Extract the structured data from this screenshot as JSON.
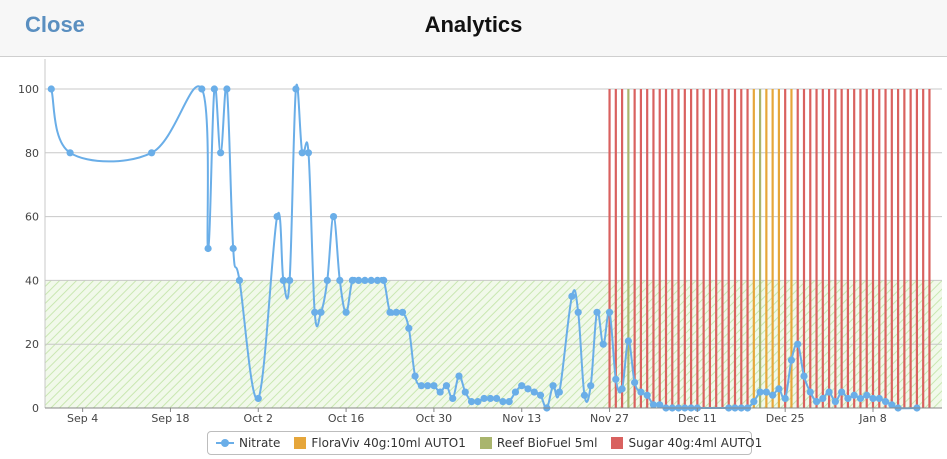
{
  "header": {
    "close_label": "Close",
    "title": "Analytics"
  },
  "colors": {
    "nitrate": "#6aaee8",
    "floraviv": "#e6a63a",
    "biofuel": "#a9b56d",
    "sugar": "#d9615f",
    "target_band": "#bfe3a6"
  },
  "chart_data": {
    "type": "line",
    "ylim": [
      0,
      100
    ],
    "xlim": [
      "2023-08-29",
      "2024-01-19"
    ],
    "yticks": [
      0,
      20,
      40,
      60,
      80,
      100
    ],
    "xticks": [
      {
        "date": "2023-09-04",
        "label": "Sep 4"
      },
      {
        "date": "2023-09-18",
        "label": "Sep 18"
      },
      {
        "date": "2023-10-02",
        "label": "Oct 2"
      },
      {
        "date": "2023-10-16",
        "label": "Oct 16"
      },
      {
        "date": "2023-10-30",
        "label": "Oct 30"
      },
      {
        "date": "2023-11-13",
        "label": "Nov 13"
      },
      {
        "date": "2023-11-27",
        "label": "Nov 27"
      },
      {
        "date": "2023-12-11",
        "label": "Dec 11"
      },
      {
        "date": "2023-12-25",
        "label": "Dec 25"
      },
      {
        "date": "2024-01-08",
        "label": "Jan 8"
      }
    ],
    "target_band": [
      0,
      40
    ],
    "series": [
      {
        "name": "Nitrate",
        "points": [
          [
            "2023-08-30",
            100
          ],
          [
            "2023-09-02",
            80
          ],
          [
            "2023-09-15",
            80
          ],
          [
            "2023-09-23",
            100
          ],
          [
            "2023-09-24",
            50
          ],
          [
            "2023-09-25",
            100
          ],
          [
            "2023-09-26",
            80
          ],
          [
            "2023-09-27",
            100
          ],
          [
            "2023-09-28",
            50
          ],
          [
            "2023-09-29",
            40
          ],
          [
            "2023-10-02",
            3
          ],
          [
            "2023-10-05",
            60
          ],
          [
            "2023-10-06",
            40
          ],
          [
            "2023-10-07",
            40
          ],
          [
            "2023-10-08",
            100
          ],
          [
            "2023-10-09",
            80
          ],
          [
            "2023-10-10",
            80
          ],
          [
            "2023-10-11",
            30
          ],
          [
            "2023-10-12",
            30
          ],
          [
            "2023-10-13",
            40
          ],
          [
            "2023-10-14",
            60
          ],
          [
            "2023-10-15",
            40
          ],
          [
            "2023-10-16",
            30
          ],
          [
            "2023-10-17",
            40
          ],
          [
            "2023-10-18",
            40
          ],
          [
            "2023-10-19",
            40
          ],
          [
            "2023-10-20",
            40
          ],
          [
            "2023-10-21",
            40
          ],
          [
            "2023-10-22",
            40
          ],
          [
            "2023-10-23",
            30
          ],
          [
            "2023-10-24",
            30
          ],
          [
            "2023-10-25",
            30
          ],
          [
            "2023-10-26",
            25
          ],
          [
            "2023-10-27",
            10
          ],
          [
            "2023-10-28",
            7
          ],
          [
            "2023-10-29",
            7
          ],
          [
            "2023-10-30",
            7
          ],
          [
            "2023-10-31",
            5
          ],
          [
            "2023-11-01",
            7
          ],
          [
            "2023-11-02",
            3
          ],
          [
            "2023-11-03",
            10
          ],
          [
            "2023-11-04",
            5
          ],
          [
            "2023-11-05",
            2
          ],
          [
            "2023-11-06",
            2
          ],
          [
            "2023-11-07",
            3
          ],
          [
            "2023-11-08",
            3
          ],
          [
            "2023-11-09",
            3
          ],
          [
            "2023-11-10",
            2
          ],
          [
            "2023-11-11",
            2
          ],
          [
            "2023-11-12",
            5
          ],
          [
            "2023-11-13",
            7
          ],
          [
            "2023-11-14",
            6
          ],
          [
            "2023-11-15",
            5
          ],
          [
            "2023-11-16",
            4
          ],
          [
            "2023-11-17",
            0
          ],
          [
            "2023-11-18",
            7
          ],
          [
            "2023-11-19",
            5
          ],
          [
            "2023-11-21",
            35
          ],
          [
            "2023-11-22",
            30
          ],
          [
            "2023-11-23",
            4
          ],
          [
            "2023-11-24",
            7
          ],
          [
            "2023-11-25",
            30
          ],
          [
            "2023-11-26",
            20
          ],
          [
            "2023-11-27",
            30
          ],
          [
            "2023-11-28",
            9
          ],
          [
            "2023-11-29",
            6
          ],
          [
            "2023-11-30",
            21
          ],
          [
            "2023-12-01",
            8
          ],
          [
            "2023-12-02",
            5
          ],
          [
            "2023-12-03",
            4
          ],
          [
            "2023-12-04",
            1
          ],
          [
            "2023-12-05",
            1
          ],
          [
            "2023-12-06",
            0
          ],
          [
            "2023-12-07",
            0
          ],
          [
            "2023-12-08",
            0
          ],
          [
            "2023-12-09",
            0
          ],
          [
            "2023-12-10",
            0
          ],
          [
            "2023-12-11",
            0
          ],
          [
            "2023-12-16",
            0
          ],
          [
            "2023-12-17",
            0
          ],
          [
            "2023-12-18",
            0
          ],
          [
            "2023-12-19",
            0
          ],
          [
            "2023-12-20",
            2
          ],
          [
            "2023-12-21",
            5
          ],
          [
            "2023-12-22",
            5
          ],
          [
            "2023-12-23",
            4
          ],
          [
            "2023-12-24",
            6
          ],
          [
            "2023-12-25",
            3
          ],
          [
            "2023-12-26",
            15
          ],
          [
            "2023-12-27",
            20
          ],
          [
            "2023-12-28",
            10
          ],
          [
            "2023-12-29",
            5
          ],
          [
            "2023-12-30",
            2
          ],
          [
            "2023-12-31",
            3
          ],
          [
            "2024-01-01",
            5
          ],
          [
            "2024-01-02",
            2
          ],
          [
            "2024-01-03",
            5
          ],
          [
            "2024-01-04",
            3
          ],
          [
            "2024-01-05",
            4
          ],
          [
            "2024-01-06",
            3
          ],
          [
            "2024-01-07",
            4
          ],
          [
            "2024-01-08",
            3
          ],
          [
            "2024-01-09",
            3
          ],
          [
            "2024-01-10",
            2
          ],
          [
            "2024-01-11",
            1
          ],
          [
            "2024-01-12",
            0
          ],
          [
            "2024-01-15",
            0
          ]
        ]
      },
      {
        "name": "FloraViv 40g:10ml AUTO1",
        "markers": [
          "2023-12-20",
          "2023-12-22",
          "2023-12-23",
          "2023-12-24",
          "2023-12-26"
        ]
      },
      {
        "name": "Reef BioFuel 5ml",
        "markers": [
          "2023-11-30",
          "2023-12-21"
        ]
      },
      {
        "name": "Sugar 40g:4ml AUTO1",
        "markers": [
          "2023-11-27",
          "2023-11-28",
          "2023-11-29",
          "2023-12-01",
          "2023-12-02",
          "2023-12-03",
          "2023-12-04",
          "2023-12-05",
          "2023-12-06",
          "2023-12-07",
          "2023-12-08",
          "2023-12-09",
          "2023-12-10",
          "2023-12-11",
          "2023-12-12",
          "2023-12-13",
          "2023-12-14",
          "2023-12-15",
          "2023-12-16",
          "2023-12-17",
          "2023-12-18",
          "2023-12-19",
          "2023-12-25",
          "2023-12-27",
          "2023-12-28",
          "2023-12-29",
          "2023-12-30",
          "2023-12-31",
          "2024-01-01",
          "2024-01-02",
          "2024-01-03",
          "2024-01-04",
          "2024-01-05",
          "2024-01-06",
          "2024-01-07",
          "2024-01-08",
          "2024-01-09",
          "2024-01-10",
          "2024-01-11",
          "2024-01-12",
          "2024-01-13",
          "2024-01-14",
          "2024-01-15",
          "2024-01-16",
          "2024-01-17"
        ]
      }
    ]
  }
}
